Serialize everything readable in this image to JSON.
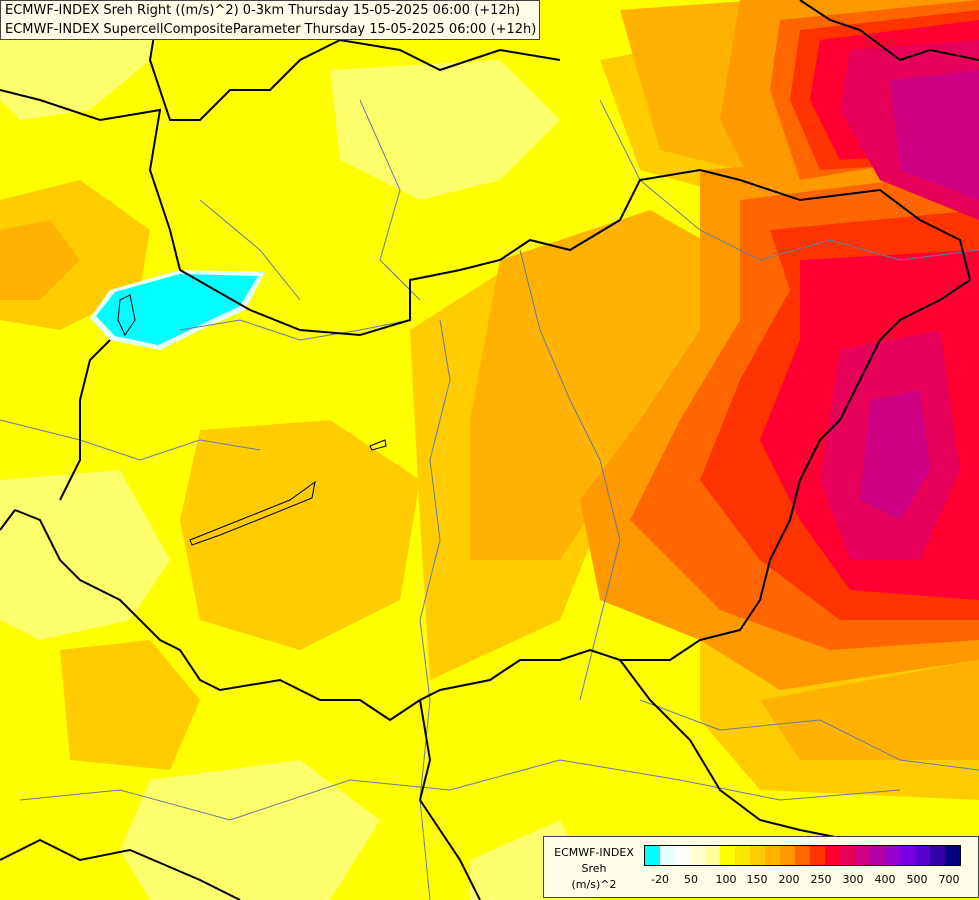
{
  "header": {
    "line1": "ECMWF-INDEX Sreh Right ((m/s)^2) 0-3km Thursday 15-05-2025 06:00 (+12h)",
    "line2": "ECMWF-INDEX SupercellCompositeParameter Thursday 15-05-2025 06:00 (+12h)"
  },
  "legend": {
    "source": "ECMWF-INDEX",
    "variable": "Sreh",
    "unit": "(m/s)^2",
    "colors": [
      "#00ffff",
      "#e6ffff",
      "#ffffff",
      "#ffffd0",
      "#ffff99",
      "#ffff00",
      "#ffe600",
      "#ffcc00",
      "#ffb300",
      "#ff9900",
      "#ff6600",
      "#ff3300",
      "#ff0033",
      "#e6005a",
      "#cc0080",
      "#b300a6",
      "#9900cc",
      "#7a00e6",
      "#5500cc",
      "#3300a6",
      "#000080"
    ],
    "tick_labels": [
      "-20",
      "50",
      "100",
      "150",
      "200",
      "250",
      "300",
      "400",
      "500",
      "700"
    ]
  },
  "map_layers": {
    "background_color": "#ffff00",
    "boundary_color": "#000000",
    "river_color": "#6a7a9a"
  }
}
